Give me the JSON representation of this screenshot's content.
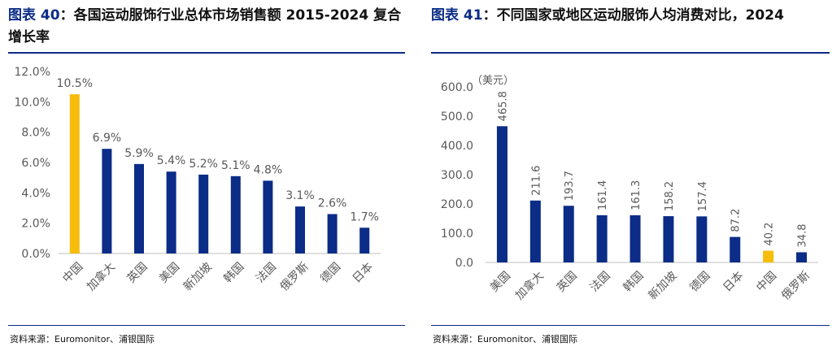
{
  "figures": [
    {
      "fig_prefix": "图表 40",
      "title_text": "：各国运动服饰行业总体市场销售额 2015-2024 复合增长率",
      "source": "资料来源：Euromonitor、浦银国际"
    },
    {
      "fig_prefix": "图表 41",
      "title_text": "：不同国家或地区运动服饰人均消费对比，2024",
      "source": "资料来源：Euromonitor、浦银国际"
    }
  ],
  "colors": {
    "navy": "#0b2c87",
    "highlight": "#f6bd0d",
    "axis_text": "#595959",
    "axis_line": "#bfbfbf"
  },
  "chart_data": [
    {
      "type": "bar",
      "title": "各国运动服饰行业总体市场销售额 2015-2024 复合增长率",
      "categories": [
        "中国",
        "加拿大",
        "英国",
        "美国",
        "新加坡",
        "韩国",
        "法国",
        "俄罗斯",
        "德国",
        "日本"
      ],
      "values": [
        10.5,
        6.9,
        5.9,
        5.4,
        5.2,
        5.1,
        4.8,
        3.1,
        2.6,
        1.7
      ],
      "value_labels": [
        "10.5%",
        "6.9%",
        "5.9%",
        "5.4%",
        "5.2%",
        "5.1%",
        "4.8%",
        "3.1%",
        "2.6%",
        "1.7%"
      ],
      "highlight_index": 0,
      "yticks": [
        "0.0%",
        "2.0%",
        "4.0%",
        "6.0%",
        "8.0%",
        "10.0%",
        "12.0%"
      ],
      "ylim": [
        0,
        12
      ],
      "unit": "",
      "grid": false
    },
    {
      "type": "bar",
      "title": "不同国家或地区运动服饰人均消费对比，2024",
      "categories": [
        "美国",
        "加拿大",
        "英国",
        "法国",
        "韩国",
        "新加坡",
        "德国",
        "日本",
        "中国",
        "俄罗斯"
      ],
      "values": [
        465.8,
        211.6,
        193.7,
        161.4,
        161.3,
        158.2,
        157.4,
        87.2,
        40.2,
        34.8
      ],
      "value_labels": [
        "465.8",
        "211.6",
        "193.7",
        "161.4",
        "161.3",
        "158.2",
        "157.4",
        "87.2",
        "40.2",
        "34.8"
      ],
      "highlight_index": 8,
      "yticks": [
        "0.0",
        "100.0",
        "200.0",
        "300.0",
        "400.0",
        "500.0",
        "600.0"
      ],
      "ylim": [
        0,
        600
      ],
      "unit": "（美元）",
      "grid": false
    }
  ]
}
